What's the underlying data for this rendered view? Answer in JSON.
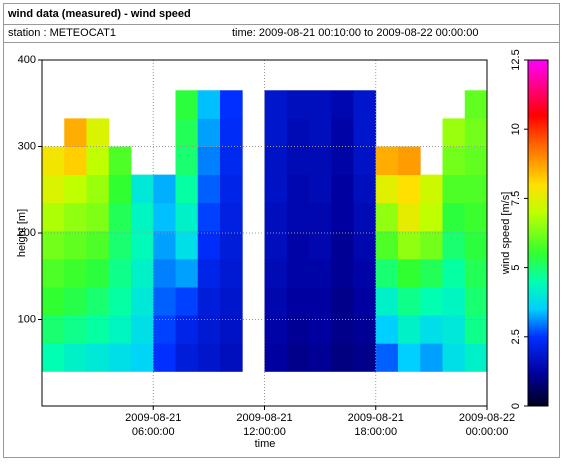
{
  "chart_data": {
    "type": "heatmap",
    "title": "wind data (measured) - wind speed",
    "station": "station : METEOCAT1",
    "time_range": "time: 2009-08-21 00:10:00 to 2009-08-22 00:00:00",
    "x_label": "time",
    "y_label": "height [m]",
    "colorbar_label": "wind speed [m/s]",
    "x": [
      0,
      1.2,
      2.4,
      3.6,
      4.8,
      6,
      7.2,
      8.4,
      9.6,
      10.8,
      12,
      13.2,
      14.4,
      15.6,
      16.8,
      18,
      19.2,
      20.4,
      21.6,
      22.8,
      24
    ],
    "y": [
      40,
      72.5,
      105,
      137.5,
      170,
      202.5,
      235,
      267.5,
      300,
      332.5,
      365
    ],
    "values": [
      [
        4.5,
        4.2,
        4.0,
        3.8,
        3.6,
        2.5,
        2.0,
        1.8,
        1.6,
        null,
        1.2,
        1.0,
        1.1,
        0.9,
        1.0,
        2.8,
        3.5,
        3.2,
        3.8,
        4.2
      ],
      [
        5.0,
        4.8,
        4.6,
        4.3,
        3.8,
        2.6,
        2.2,
        1.9,
        1.7,
        null,
        1.3,
        1.1,
        1.2,
        1.0,
        1.1,
        3.5,
        4.2,
        3.8,
        4.0,
        4.8
      ],
      [
        5.5,
        5.3,
        5.0,
        4.6,
        4.0,
        2.8,
        2.6,
        2.0,
        1.8,
        null,
        1.4,
        1.2,
        1.2,
        1.0,
        1.2,
        4.2,
        4.8,
        4.5,
        4.3,
        5.0
      ],
      [
        5.8,
        5.6,
        5.4,
        4.8,
        4.2,
        3.0,
        3.2,
        2.2,
        1.9,
        null,
        1.5,
        1.3,
        1.3,
        1.1,
        1.3,
        5.0,
        5.5,
        5.2,
        4.6,
        5.2
      ],
      [
        6.2,
        6.0,
        5.8,
        5.0,
        4.4,
        3.2,
        3.8,
        2.4,
        2.0,
        null,
        1.6,
        1.3,
        1.4,
        1.1,
        1.4,
        5.8,
        6.5,
        6.2,
        5.0,
        5.4
      ],
      [
        6.8,
        6.5,
        6.3,
        5.2,
        4.3,
        3.4,
        4.2,
        2.6,
        2.1,
        null,
        1.6,
        1.4,
        1.4,
        1.2,
        1.5,
        6.5,
        7.6,
        7.0,
        5.4,
        5.6
      ],
      [
        7.4,
        7.0,
        6.6,
        5.5,
        4.0,
        3.3,
        4.6,
        2.8,
        2.2,
        null,
        1.7,
        1.4,
        1.5,
        1.2,
        1.6,
        7.5,
        8.0,
        7.2,
        5.8,
        5.8
      ],
      [
        7.8,
        8.2,
        7.0,
        5.8,
        null,
        null,
        5.0,
        3.0,
        2.3,
        null,
        1.7,
        1.5,
        1.5,
        1.3,
        1.7,
        8.6,
        8.8,
        null,
        6.2,
        6.0
      ],
      [
        null,
        8.6,
        7.4,
        null,
        null,
        null,
        5.2,
        3.2,
        2.4,
        null,
        1.8,
        1.5,
        1.6,
        1.3,
        1.8,
        null,
        null,
        null,
        6.6,
        6.2
      ],
      [
        null,
        null,
        null,
        null,
        null,
        null,
        5.4,
        3.4,
        2.5,
        null,
        1.8,
        1.6,
        1.6,
        1.4,
        1.8,
        null,
        null,
        null,
        null,
        6.0
      ]
    ],
    "xlim": [
      0,
      24
    ],
    "xticks": [
      {
        "value": 6,
        "label": "2009-08-21 06:00:00"
      },
      {
        "value": 12,
        "label": "2009-08-21 12:00:00"
      },
      {
        "value": 18,
        "label": "2009-08-21 18:00:00"
      },
      {
        "value": 24,
        "label": "2009-08-22 00:00:00"
      }
    ],
    "ylim": [
      0,
      400
    ],
    "yticks": [
      100,
      200,
      300,
      400
    ],
    "clim": [
      0,
      12.5
    ],
    "cticks": [
      0,
      2.5,
      5,
      7.5,
      10,
      12.5
    ],
    "colorscale": [
      [
        0,
        "#000020"
      ],
      [
        1.2,
        "#0000a0"
      ],
      [
        2.5,
        "#0030ff"
      ],
      [
        3.5,
        "#00d0ff"
      ],
      [
        4.5,
        "#00ffb0"
      ],
      [
        5.5,
        "#30ff30"
      ],
      [
        7,
        "#c0ff00"
      ],
      [
        8,
        "#ffe000"
      ],
      [
        9.5,
        "#ff6000"
      ],
      [
        10.5,
        "#ff0000"
      ],
      [
        12.5,
        "#ff00ff"
      ]
    ],
    "grid": true
  }
}
